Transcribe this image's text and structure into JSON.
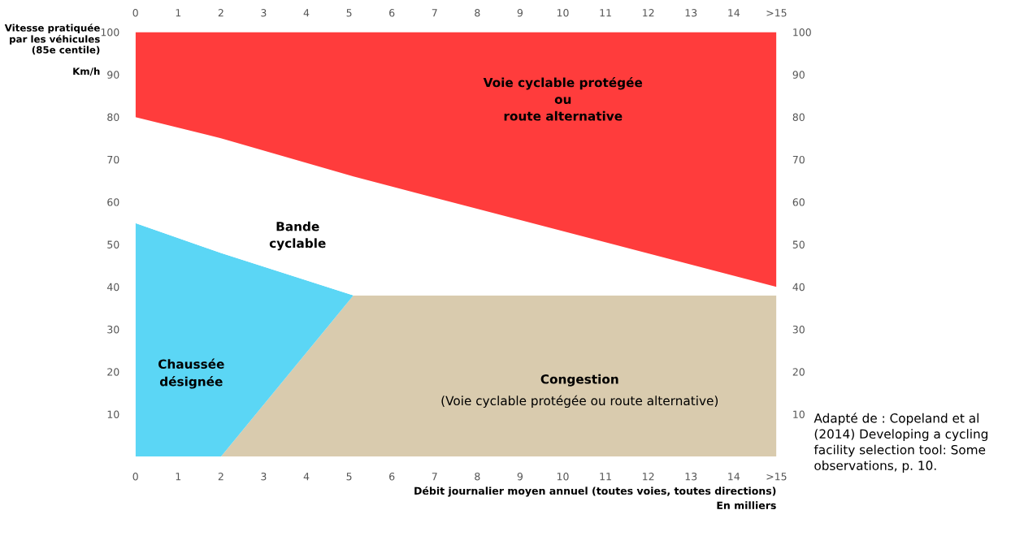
{
  "chart_data": {
    "type": "area",
    "ylabel": "Vitesse pratiquée\npar les véhicules\n(85e centile)\n\nKm/h",
    "xlabel": "Débit journalier moyen annuel (toutes voies, toutes directions)\nEn milliers",
    "xlim": [
      0,
      15
    ],
    "ylim": [
      0,
      100
    ],
    "xticks": [
      0,
      1,
      2,
      3,
      4,
      5,
      6,
      7,
      8,
      9,
      10,
      11,
      12,
      13,
      14,
      {
        "value": 15,
        "label": ">15"
      }
    ],
    "yticks": [
      10,
      20,
      30,
      40,
      50,
      60,
      70,
      80,
      90,
      100
    ],
    "x2lim": [
      0,
      15
    ],
    "x2ticks": [
      0,
      1,
      2,
      3,
      4,
      5,
      6,
      7,
      8,
      9,
      10,
      11,
      12,
      13,
      14,
      {
        "value": 15,
        "label": ">15"
      }
    ],
    "y2lim": [
      0,
      100
    ],
    "y2ticks": [
      10,
      20,
      30,
      40,
      50,
      60,
      70,
      80,
      90,
      100
    ],
    "stacked": true,
    "x": [
      0,
      2,
      5.1,
      15
    ],
    "series": [
      {
        "color": "#d9cbae",
        "values": [
          0,
          0,
          38,
          38
        ]
      },
      {
        "color": "#5bd6f5",
        "values": [
          55,
          48,
          0,
          0
        ]
      },
      {
        "color": "#ffffff",
        "values": [
          25,
          27,
          28,
          2
        ]
      },
      {
        "color": "#ff3c3c",
        "values": [
          20,
          25,
          34,
          60
        ]
      }
    ],
    "annotations": [
      "Voie cyclable protégée\nou\nroute alternative",
      "Bande\ncyclable",
      "Chaussée\ndésignée",
      "Congestion",
      "(Voie cyclable protégée ou route alternative)",
      "Adapté de : Copeland et al (2014) Developing a cycling facility selection tool: Some observations, p. 10."
    ],
    "grid": false,
    "legend": false
  }
}
